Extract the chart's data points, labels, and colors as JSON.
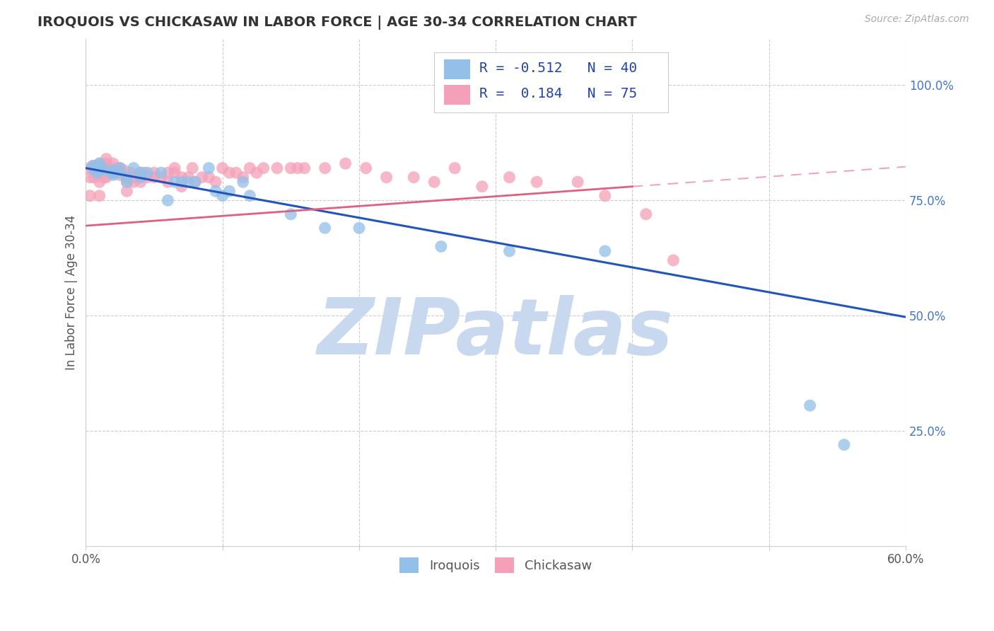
{
  "title": "IROQUOIS VS CHICKASAW IN LABOR FORCE | AGE 30-34 CORRELATION CHART",
  "source": "Source: ZipAtlas.com",
  "ylabel": "In Labor Force | Age 30-34",
  "xlim": [
    0.0,
    0.6
  ],
  "ylim": [
    0.0,
    1.1
  ],
  "xticks": [
    0.0,
    0.1,
    0.2,
    0.3,
    0.4,
    0.5,
    0.6
  ],
  "xticklabels": [
    "0.0%",
    "",
    "",
    "",
    "",
    "",
    "60.0%"
  ],
  "ytick_positions": [
    0.25,
    0.5,
    0.75,
    1.0
  ],
  "ytick_labels": [
    "25.0%",
    "50.0%",
    "75.0%",
    "100.0%"
  ],
  "iroquois_color": "#92C0E8",
  "chickasaw_color": "#F4A0B8",
  "iroquois_line_color": "#2255BB",
  "chickasaw_line_color": "#E06080",
  "background_color": "#FFFFFF",
  "watermark_color": "#C8D8EE",
  "R_iroquois": -0.512,
  "N_iroquois": 40,
  "R_chickasaw": 0.184,
  "N_chickasaw": 75,
  "iroquois_x": [
    0.005,
    0.005,
    0.008,
    0.01,
    0.01,
    0.01,
    0.01,
    0.01,
    0.015,
    0.02,
    0.02,
    0.02,
    0.025,
    0.025,
    0.03,
    0.03,
    0.035,
    0.04,
    0.04,
    0.045,
    0.055,
    0.06,
    0.065,
    0.07,
    0.075,
    0.08,
    0.09,
    0.095,
    0.1,
    0.105,
    0.115,
    0.12,
    0.15,
    0.175,
    0.2,
    0.26,
    0.31,
    0.38,
    0.53,
    0.555
  ],
  "iroquois_y": [
    0.825,
    0.82,
    0.81,
    0.82,
    0.815,
    0.825,
    0.82,
    0.83,
    0.815,
    0.815,
    0.81,
    0.805,
    0.82,
    0.81,
    0.8,
    0.79,
    0.82,
    0.81,
    0.8,
    0.81,
    0.81,
    0.75,
    0.79,
    0.79,
    0.79,
    0.79,
    0.82,
    0.77,
    0.76,
    0.77,
    0.79,
    0.76,
    0.72,
    0.69,
    0.69,
    0.65,
    0.64,
    0.64,
    0.305,
    0.22
  ],
  "chickasaw_x": [
    0.003,
    0.003,
    0.003,
    0.006,
    0.006,
    0.006,
    0.01,
    0.01,
    0.01,
    0.01,
    0.01,
    0.013,
    0.015,
    0.015,
    0.015,
    0.015,
    0.018,
    0.02,
    0.02,
    0.02,
    0.023,
    0.025,
    0.025,
    0.028,
    0.03,
    0.03,
    0.03,
    0.033,
    0.035,
    0.035,
    0.04,
    0.04,
    0.04,
    0.043,
    0.045,
    0.05,
    0.05,
    0.055,
    0.06,
    0.06,
    0.065,
    0.065,
    0.07,
    0.07,
    0.075,
    0.078,
    0.08,
    0.085,
    0.09,
    0.095,
    0.1,
    0.105,
    0.11,
    0.115,
    0.12,
    0.125,
    0.13,
    0.14,
    0.15,
    0.155,
    0.16,
    0.175,
    0.19,
    0.205,
    0.22,
    0.24,
    0.255,
    0.27,
    0.29,
    0.31,
    0.33,
    0.36,
    0.38,
    0.41,
    0.43
  ],
  "chickasaw_y": [
    0.76,
    0.82,
    0.8,
    0.8,
    0.82,
    0.825,
    0.83,
    0.76,
    0.82,
    0.79,
    0.82,
    0.8,
    0.84,
    0.82,
    0.8,
    0.83,
    0.82,
    0.83,
    0.81,
    0.81,
    0.82,
    0.82,
    0.805,
    0.815,
    0.8,
    0.77,
    0.79,
    0.81,
    0.79,
    0.8,
    0.8,
    0.81,
    0.79,
    0.81,
    0.8,
    0.8,
    0.81,
    0.8,
    0.81,
    0.79,
    0.82,
    0.81,
    0.8,
    0.78,
    0.8,
    0.82,
    0.79,
    0.8,
    0.8,
    0.79,
    0.82,
    0.81,
    0.81,
    0.8,
    0.82,
    0.81,
    0.82,
    0.82,
    0.82,
    0.82,
    0.82,
    0.82,
    0.83,
    0.82,
    0.8,
    0.8,
    0.79,
    0.82,
    0.78,
    0.8,
    0.79,
    0.79,
    0.76,
    0.72,
    0.62
  ],
  "trendline_iroquois_x0": 0.0,
  "trendline_iroquois_y0": 0.82,
  "trendline_iroquois_x1": 0.6,
  "trendline_iroquois_y1": 0.497,
  "trendline_chickasaw_solid_x0": 0.0,
  "trendline_chickasaw_solid_y0": 0.695,
  "trendline_chickasaw_solid_x1": 0.4,
  "trendline_chickasaw_solid_y1": 0.78,
  "trendline_chickasaw_dashed_x0": 0.4,
  "trendline_chickasaw_dashed_y0": 0.78,
  "trendline_chickasaw_dashed_x1": 0.6,
  "trendline_chickasaw_dashed_y1": 0.823
}
